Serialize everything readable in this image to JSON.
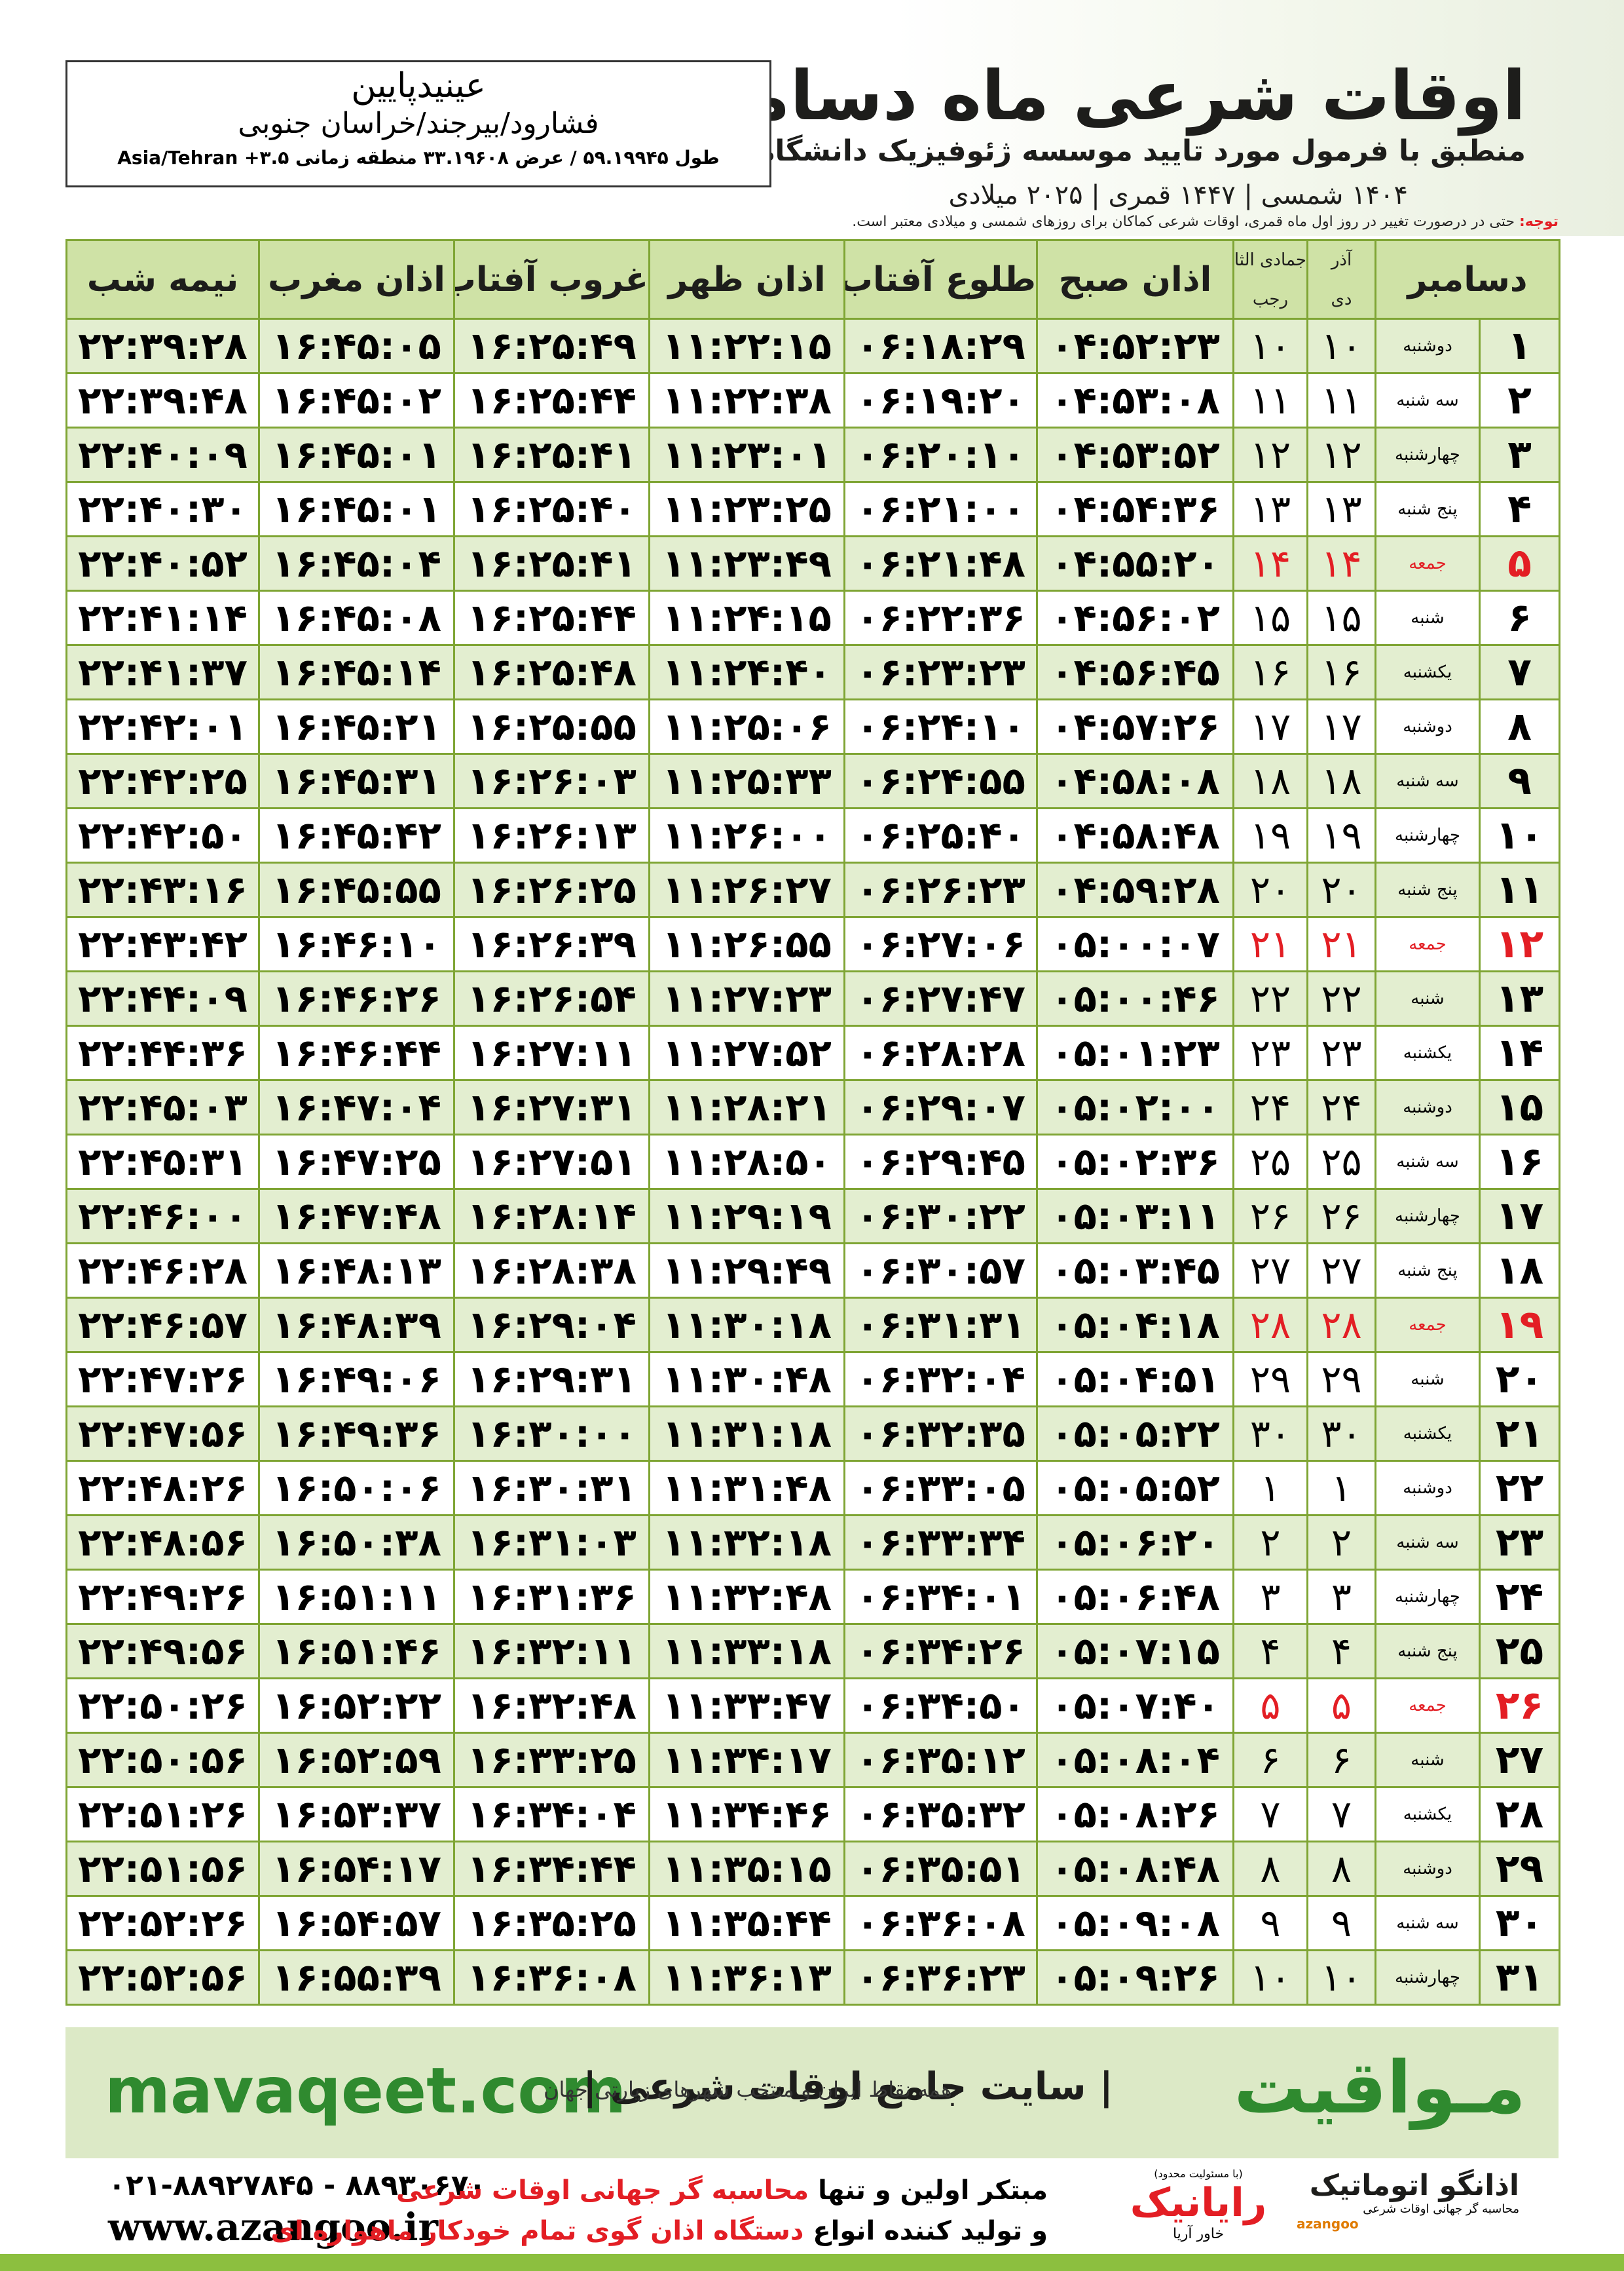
{
  "header": {
    "title": "اوقات شرعی ماه دسامبر",
    "subtitle": "منطبق با فرمول مورد تایید موسسه ژئوفیزیک دانشگاه تهران",
    "dates": "۱۴۰۴ شمسی | ۱۴۴۷ قمری | ۲۰۲۵ میلادی"
  },
  "location": {
    "name": "عینیدپایین",
    "region": "فشارود/بیرجند/خراسان جنوبی",
    "coordinates": "طول ۵۹.۱۹۹۴۵ / عرض ۳۳.۱۹۶۰۸ منطقه زمانی ۳.۵+ Asia/Tehran"
  },
  "note": {
    "label": "توجه:",
    "text": "حتی در درصورت تغییر در روز اول ماه قمری، اوقات شرعی کماکان برای روزهای شمسی و میلادی معتبر است."
  },
  "table": {
    "headers": {
      "month": "دسامبر",
      "shamsi_month": "آذر",
      "shamsi_next": "دی",
      "lunar_month": "جمادی الثانی",
      "lunar_next": "رجب",
      "times": [
        "اذان صبح",
        "طلوع آفتاب",
        "اذان ظهر",
        "غروب آفتاب",
        "اذان مغرب",
        "نیمه شب"
      ]
    },
    "holiday_color": "#e31e24",
    "rows": [
      {
        "cells": [
          "۱",
          "دوشنبه",
          "۱۰",
          "۱۰",
          "۰۴:۵۲:۲۳",
          "۰۶:۱۸:۲۹",
          "۱۱:۲۲:۱۵",
          "۱۶:۲۵:۴۹",
          "۱۶:۴۵:۰۵",
          "۲۲:۳۹:۲۸"
        ]
      },
      {
        "cells": [
          "۲",
          "سه شنبه",
          "۱۱",
          "۱۱",
          "۰۴:۵۳:۰۸",
          "۰۶:۱۹:۲۰",
          "۱۱:۲۲:۳۸",
          "۱۶:۲۵:۴۴",
          "۱۶:۴۵:۰۲",
          "۲۲:۳۹:۴۸"
        ]
      },
      {
        "cells": [
          "۳",
          "چهارشنبه",
          "۱۲",
          "۱۲",
          "۰۴:۵۳:۵۲",
          "۰۶:۲۰:۱۰",
          "۱۱:۲۳:۰۱",
          "۱۶:۲۵:۴۱",
          "۱۶:۴۵:۰۱",
          "۲۲:۴۰:۰۹"
        ]
      },
      {
        "cells": [
          "۴",
          "پنج شنبه",
          "۱۳",
          "۱۳",
          "۰۴:۵۴:۳۶",
          "۰۶:۲۱:۰۰",
          "۱۱:۲۳:۲۵",
          "۱۶:۲۵:۴۰",
          "۱۶:۴۵:۰۱",
          "۲۲:۴۰:۳۰"
        ]
      },
      {
        "cells": [
          "۵",
          "جمعه",
          "۱۴",
          "۱۴",
          "۰۴:۵۵:۲۰",
          "۰۶:۲۱:۴۸",
          "۱۱:۲۳:۴۹",
          "۱۶:۲۵:۴۱",
          "۱۶:۴۵:۰۴",
          "۲۲:۴۰:۵۲"
        ],
        "holiday": true
      },
      {
        "cells": [
          "۶",
          "شنبه",
          "۱۵",
          "۱۵",
          "۰۴:۵۶:۰۲",
          "۰۶:۲۲:۳۶",
          "۱۱:۲۴:۱۵",
          "۱۶:۲۵:۴۴",
          "۱۶:۴۵:۰۸",
          "۲۲:۴۱:۱۴"
        ]
      },
      {
        "cells": [
          "۷",
          "یکشنبه",
          "۱۶",
          "۱۶",
          "۰۴:۵۶:۴۵",
          "۰۶:۲۳:۲۳",
          "۱۱:۲۴:۴۰",
          "۱۶:۲۵:۴۸",
          "۱۶:۴۵:۱۴",
          "۲۲:۴۱:۳۷"
        ]
      },
      {
        "cells": [
          "۸",
          "دوشنبه",
          "۱۷",
          "۱۷",
          "۰۴:۵۷:۲۶",
          "۰۶:۲۴:۱۰",
          "۱۱:۲۵:۰۶",
          "۱۶:۲۵:۵۵",
          "۱۶:۴۵:۲۱",
          "۲۲:۴۲:۰۱"
        ]
      },
      {
        "cells": [
          "۹",
          "سه شنبه",
          "۱۸",
          "۱۸",
          "۰۴:۵۸:۰۸",
          "۰۶:۲۴:۵۵",
          "۱۱:۲۵:۳۳",
          "۱۶:۲۶:۰۳",
          "۱۶:۴۵:۳۱",
          "۲۲:۴۲:۲۵"
        ]
      },
      {
        "cells": [
          "۱۰",
          "چهارشنبه",
          "۱۹",
          "۱۹",
          "۰۴:۵۸:۴۸",
          "۰۶:۲۵:۴۰",
          "۱۱:۲۶:۰۰",
          "۱۶:۲۶:۱۳",
          "۱۶:۴۵:۴۲",
          "۲۲:۴۲:۵۰"
        ]
      },
      {
        "cells": [
          "۱۱",
          "پنج شنبه",
          "۲۰",
          "۲۰",
          "۰۴:۵۹:۲۸",
          "۰۶:۲۶:۲۳",
          "۱۱:۲۶:۲۷",
          "۱۶:۲۶:۲۵",
          "۱۶:۴۵:۵۵",
          "۲۲:۴۳:۱۶"
        ]
      },
      {
        "cells": [
          "۱۲",
          "جمعه",
          "۲۱",
          "۲۱",
          "۰۵:۰۰:۰۷",
          "۰۶:۲۷:۰۶",
          "۱۱:۲۶:۵۵",
          "۱۶:۲۶:۳۹",
          "۱۶:۴۶:۱۰",
          "۲۲:۴۳:۴۲"
        ],
        "holiday": true
      },
      {
        "cells": [
          "۱۳",
          "شنبه",
          "۲۲",
          "۲۲",
          "۰۵:۰۰:۴۶",
          "۰۶:۲۷:۴۷",
          "۱۱:۲۷:۲۳",
          "۱۶:۲۶:۵۴",
          "۱۶:۴۶:۲۶",
          "۲۲:۴۴:۰۹"
        ]
      },
      {
        "cells": [
          "۱۴",
          "یکشنبه",
          "۲۳",
          "۲۳",
          "۰۵:۰۱:۲۳",
          "۰۶:۲۸:۲۸",
          "۱۱:۲۷:۵۲",
          "۱۶:۲۷:۱۱",
          "۱۶:۴۶:۴۴",
          "۲۲:۴۴:۳۶"
        ]
      },
      {
        "cells": [
          "۱۵",
          "دوشنبه",
          "۲۴",
          "۲۴",
          "۰۵:۰۲:۰۰",
          "۰۶:۲۹:۰۷",
          "۱۱:۲۸:۲۱",
          "۱۶:۲۷:۳۱",
          "۱۶:۴۷:۰۴",
          "۲۲:۴۵:۰۳"
        ]
      },
      {
        "cells": [
          "۱۶",
          "سه شنبه",
          "۲۵",
          "۲۵",
          "۰۵:۰۲:۳۶",
          "۰۶:۲۹:۴۵",
          "۱۱:۲۸:۵۰",
          "۱۶:۲۷:۵۱",
          "۱۶:۴۷:۲۵",
          "۲۲:۴۵:۳۱"
        ]
      },
      {
        "cells": [
          "۱۷",
          "چهارشنبه",
          "۲۶",
          "۲۶",
          "۰۵:۰۳:۱۱",
          "۰۶:۳۰:۲۲",
          "۱۱:۲۹:۱۹",
          "۱۶:۲۸:۱۴",
          "۱۶:۴۷:۴۸",
          "۲۲:۴۶:۰۰"
        ]
      },
      {
        "cells": [
          "۱۸",
          "پنج شنبه",
          "۲۷",
          "۲۷",
          "۰۵:۰۳:۴۵",
          "۰۶:۳۰:۵۷",
          "۱۱:۲۹:۴۹",
          "۱۶:۲۸:۳۸",
          "۱۶:۴۸:۱۳",
          "۲۲:۴۶:۲۸"
        ]
      },
      {
        "cells": [
          "۱۹",
          "جمعه",
          "۲۸",
          "۲۸",
          "۰۵:۰۴:۱۸",
          "۰۶:۳۱:۳۱",
          "۱۱:۳۰:۱۸",
          "۱۶:۲۹:۰۴",
          "۱۶:۴۸:۳۹",
          "۲۲:۴۶:۵۷"
        ],
        "holiday": true
      },
      {
        "cells": [
          "۲۰",
          "شنبه",
          "۲۹",
          "۲۹",
          "۰۵:۰۴:۵۱",
          "۰۶:۳۲:۰۴",
          "۱۱:۳۰:۴۸",
          "۱۶:۲۹:۳۱",
          "۱۶:۴۹:۰۶",
          "۲۲:۴۷:۲۶"
        ]
      },
      {
        "cells": [
          "۲۱",
          "یکشنبه",
          "۳۰",
          "۳۰",
          "۰۵:۰۵:۲۲",
          "۰۶:۳۲:۳۵",
          "۱۱:۳۱:۱۸",
          "۱۶:۳۰:۰۰",
          "۱۶:۴۹:۳۶",
          "۲۲:۴۷:۵۶"
        ]
      },
      {
        "cells": [
          "۲۲",
          "دوشنبه",
          "۱",
          "۱",
          "۰۵:۰۵:۵۲",
          "۰۶:۳۳:۰۵",
          "۱۱:۳۱:۴۸",
          "۱۶:۳۰:۳۱",
          "۱۶:۵۰:۰۶",
          "۲۲:۴۸:۲۶"
        ]
      },
      {
        "cells": [
          "۲۳",
          "سه شنبه",
          "۲",
          "۲",
          "۰۵:۰۶:۲۰",
          "۰۶:۳۳:۳۴",
          "۱۱:۳۲:۱۸",
          "۱۶:۳۱:۰۳",
          "۱۶:۵۰:۳۸",
          "۲۲:۴۸:۵۶"
        ]
      },
      {
        "cells": [
          "۲۴",
          "چهارشنبه",
          "۳",
          "۳",
          "۰۵:۰۶:۴۸",
          "۰۶:۳۴:۰۱",
          "۱۱:۳۲:۴۸",
          "۱۶:۳۱:۳۶",
          "۱۶:۵۱:۱۱",
          "۲۲:۴۹:۲۶"
        ]
      },
      {
        "cells": [
          "۲۵",
          "پنج شنبه",
          "۴",
          "۴",
          "۰۵:۰۷:۱۵",
          "۰۶:۳۴:۲۶",
          "۱۱:۳۳:۱۸",
          "۱۶:۳۲:۱۱",
          "۱۶:۵۱:۴۶",
          "۲۲:۴۹:۵۶"
        ]
      },
      {
        "cells": [
          "۲۶",
          "جمعه",
          "۵",
          "۵",
          "۰۵:۰۷:۴۰",
          "۰۶:۳۴:۵۰",
          "۱۱:۳۳:۴۷",
          "۱۶:۳۲:۴۸",
          "۱۶:۵۲:۲۲",
          "۲۲:۵۰:۲۶"
        ],
        "holiday": true
      },
      {
        "cells": [
          "۲۷",
          "شنبه",
          "۶",
          "۶",
          "۰۵:۰۸:۰۴",
          "۰۶:۳۵:۱۲",
          "۱۱:۳۴:۱۷",
          "۱۶:۳۳:۲۵",
          "۱۶:۵۲:۵۹",
          "۲۲:۵۰:۵۶"
        ]
      },
      {
        "cells": [
          "۲۸",
          "یکشنبه",
          "۷",
          "۷",
          "۰۵:۰۸:۲۶",
          "۰۶:۳۵:۳۲",
          "۱۱:۳۴:۴۶",
          "۱۶:۳۴:۰۴",
          "۱۶:۵۳:۳۷",
          "۲۲:۵۱:۲۶"
        ]
      },
      {
        "cells": [
          "۲۹",
          "دوشنبه",
          "۸",
          "۸",
          "۰۵:۰۸:۴۸",
          "۰۶:۳۵:۵۱",
          "۱۱:۳۵:۱۵",
          "۱۶:۳۴:۴۴",
          "۱۶:۵۴:۱۷",
          "۲۲:۵۱:۵۶"
        ]
      },
      {
        "cells": [
          "۳۰",
          "سه شنبه",
          "۹",
          "۹",
          "۰۵:۰۹:۰۸",
          "۰۶:۳۶:۰۸",
          "۱۱:۳۵:۴۴",
          "۱۶:۳۵:۲۵",
          "۱۶:۵۴:۵۷",
          "۲۲:۵۲:۲۶"
        ]
      },
      {
        "cells": [
          "۳۱",
          "چهارشنبه",
          "۱۰",
          "۱۰",
          "۰۵:۰۹:۲۶",
          "۰۶:۳۶:۲۳",
          "۱۱:۳۶:۱۳",
          "۱۶:۳۶:۰۸",
          "۱۶:۵۵:۳۹",
          "۲۲:۵۲:۵۶"
        ]
      }
    ]
  },
  "footer": {
    "brand": "مـواقیت",
    "slogan": "| سایت جامع اوقات شرعی |",
    "slogan_sub": "همه نقاط ایران و منتخب شهرهای زیارتی جهان",
    "website": "mavaqeet.com"
  },
  "contact": {
    "phone": "۰۲۱-۸۸۹۲۷۸۴۵ - ۸۸۹۳۰۶۷۰",
    "website": "www.azangoo.ir",
    "line1": [
      "مبتکر اولین و تنها ",
      "محاسبه گر جهانی اوقات شرعی"
    ],
    "line2": [
      "و تولید کننده انواع ",
      "دستگاه اذان گوی تمام خودکار ماهواره ای"
    ]
  },
  "logos": {
    "rayanik": {
      "note": "(با مسئولیت محدود)",
      "name": "رایانیک",
      "sub": "خاور آریا"
    },
    "azangoo": {
      "name": "اذانگو اتوماتیک",
      "sub": "محاسبه گر جهانی اوقات شرعی",
      "latin": "azangoo"
    }
  }
}
